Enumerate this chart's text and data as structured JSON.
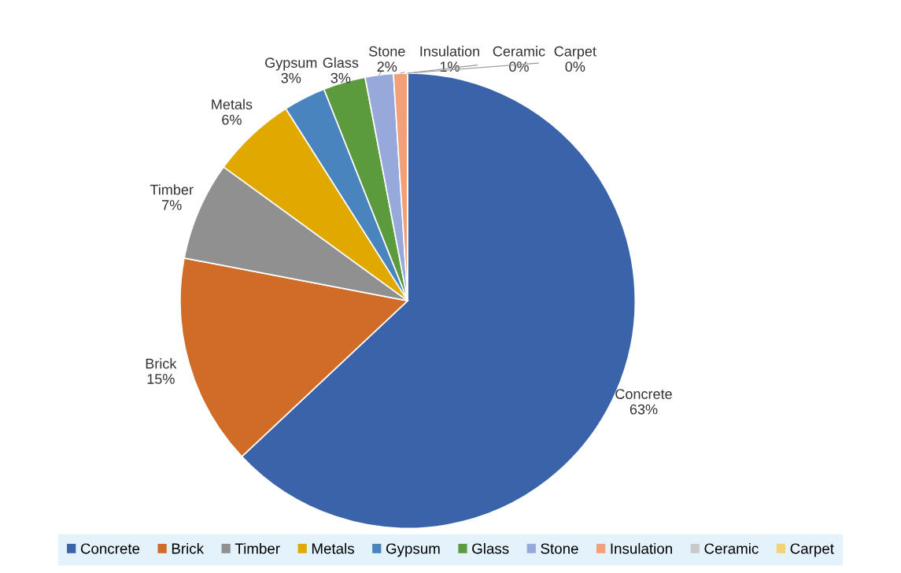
{
  "chart_data": {
    "type": "pie",
    "categories": [
      "Concrete",
      "Brick",
      "Timber",
      "Metals",
      "Gypsum",
      "Glass",
      "Stone",
      "Insulation",
      "Ceramic",
      "Carpet"
    ],
    "values": [
      63,
      15,
      7,
      6,
      3,
      3,
      2,
      1,
      0,
      0
    ],
    "value_labels": [
      "63%",
      "15%",
      "7%",
      "6%",
      "3%",
      "3%",
      "2%",
      "1%",
      "0%",
      "0%"
    ],
    "colors": [
      "#3b63a9",
      "#d16b28",
      "#909090",
      "#e1a800",
      "#4a84be",
      "#5b9a3d",
      "#97a9da",
      "#f2a07a",
      "#c9c9c9",
      "#f5d27a"
    ],
    "legend": "bottom"
  }
}
